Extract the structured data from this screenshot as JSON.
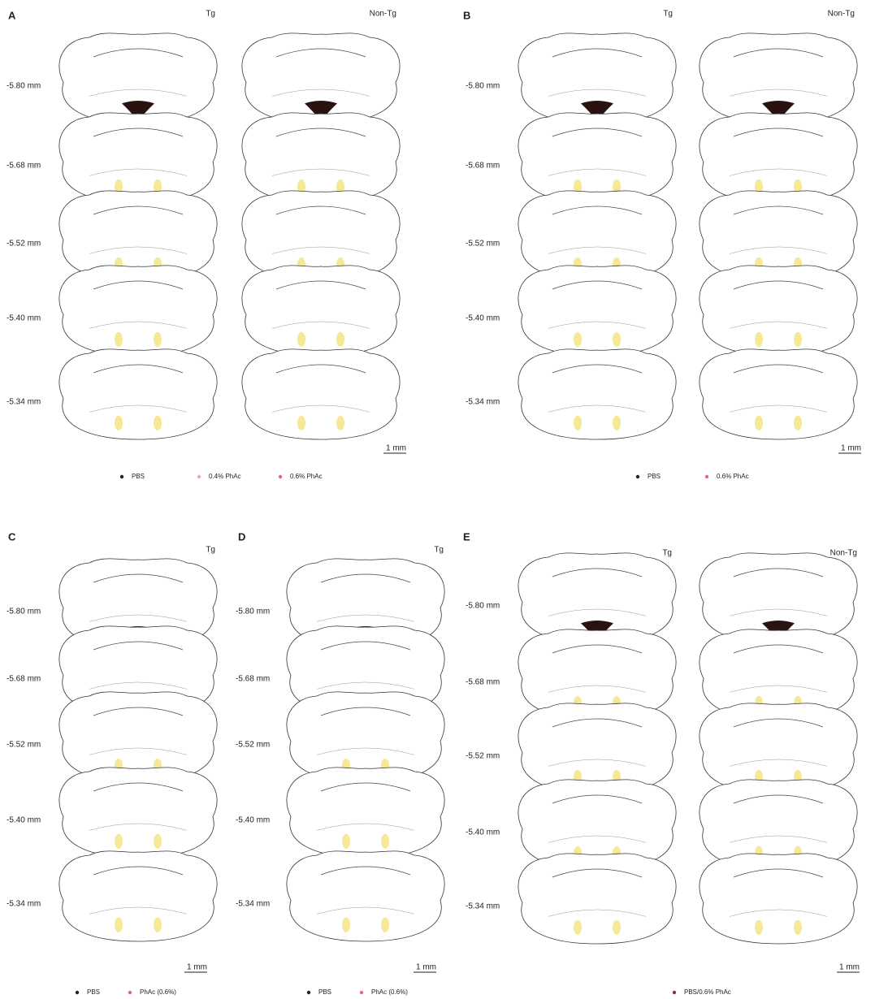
{
  "panels": [
    {
      "letter": "A",
      "columns": [
        "Tg",
        "Non-Tg"
      ],
      "depths": [
        "-5.80 mm",
        "-5.68 mm",
        "-5.52 mm",
        "-5.40 mm",
        "-5.34 mm"
      ],
      "scale": "1 mm",
      "legend": [
        {
          "label": "PBS",
          "color": "#222222"
        },
        {
          "label": "0.4% PhAc",
          "color": "#f2a3b4"
        },
        {
          "label": "0.6% PhAc",
          "color": "#e06a88"
        }
      ]
    },
    {
      "letter": "B",
      "columns": [
        "Tg",
        "Non-Tg"
      ],
      "depths": [
        "-5.80 mm",
        "-5.68 mm",
        "-5.52 mm",
        "-5.40 mm",
        "-5.34 mm"
      ],
      "scale": "1 mm",
      "legend": [
        {
          "label": "PBS",
          "color": "#222222"
        },
        {
          "label": "0.6% PhAc",
          "color": "#e06a88"
        }
      ]
    },
    {
      "letter": "C",
      "columns": [
        "Tg"
      ],
      "depths": [
        "-5.80 mm",
        "-5.68 mm",
        "-5.52 mm",
        "-5.40 mm",
        "-5.34 mm"
      ],
      "scale": "1 mm",
      "legend": [
        {
          "label": "PBS",
          "color": "#222222"
        },
        {
          "label": "PhAc (0.6%)",
          "color": "#e06a88"
        }
      ]
    },
    {
      "letter": "D",
      "columns": [
        "Tg"
      ],
      "depths": [
        "-5.80 mm",
        "-5.68 mm",
        "-5.52 mm",
        "-5.40 mm",
        "-5.34 mm"
      ],
      "scale": "1 mm",
      "legend": [
        {
          "label": "PBS",
          "color": "#222222"
        },
        {
          "label": "PhAc (0.6%)",
          "color": "#e06a88"
        }
      ]
    },
    {
      "letter": "E",
      "columns": [
        "Tg",
        "Non-Tg"
      ],
      "depths": [
        "-5.80 mm",
        "-5.68 mm",
        "-5.52 mm",
        "-5.40 mm",
        "-5.34 mm"
      ],
      "scale": "1 mm",
      "legend": [
        {
          "label": "PBS/0.6% PhAc",
          "color": "#8a2f4a"
        }
      ]
    }
  ]
}
